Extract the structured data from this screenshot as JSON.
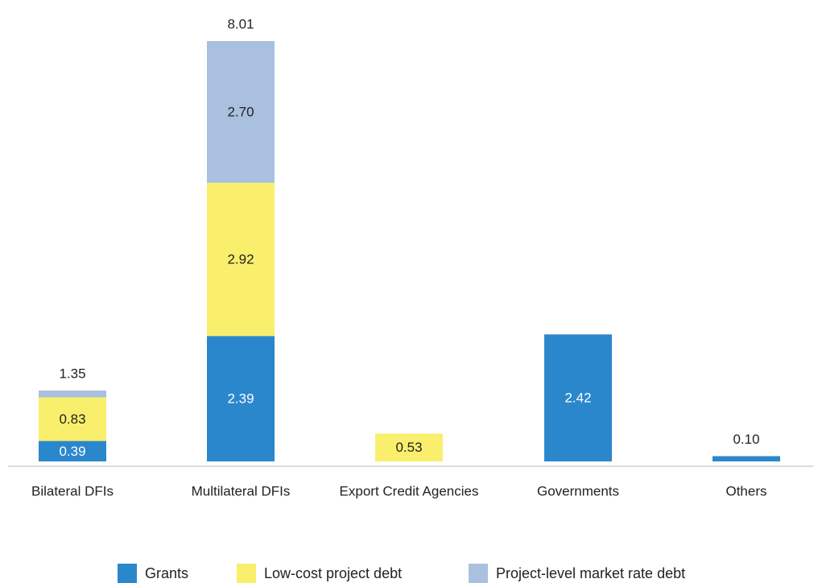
{
  "chart_data": {
    "type": "bar",
    "stacked": true,
    "categories": [
      "Bilateral DFIs",
      "Multilateral DFIs",
      "Export Credit Agencies",
      "Governments",
      "Others"
    ],
    "series": [
      {
        "name": "Grants",
        "color": "#2b87cc",
        "values": [
          0.39,
          2.39,
          0.0,
          2.42,
          0.1
        ]
      },
      {
        "name": "Low-cost project debt",
        "color": "#f9ef6c",
        "values": [
          0.83,
          2.92,
          0.53,
          0.0,
          0.0
        ]
      },
      {
        "name": "Project-level market rate debt",
        "color": "#a9c0df",
        "values": [
          0.13,
          2.7,
          0.0,
          0.0,
          0.0
        ]
      }
    ],
    "segment_labels": [
      [
        "0.39",
        "2.39",
        "",
        "2.42",
        ""
      ],
      [
        "0.83",
        "2.92",
        "0.53",
        "",
        ""
      ],
      [
        "",
        "2.70",
        "",
        "",
        ""
      ]
    ],
    "totals": [
      "1.35",
      "8.01",
      "",
      "",
      "0.10"
    ],
    "ylim": [
      0,
      8.3
    ],
    "grid": false,
    "legend": "bottom"
  }
}
